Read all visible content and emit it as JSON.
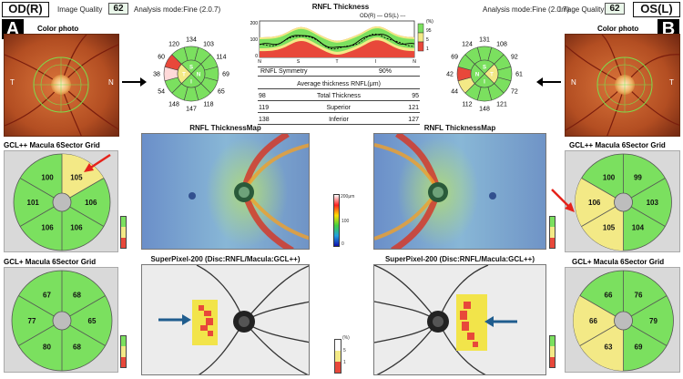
{
  "header": {
    "od_label": "OD(R)",
    "os_label": "OS(L)",
    "image_quality_label": "Image Quality",
    "image_quality_od": "62",
    "image_quality_os": "62",
    "analysis_mode_od": "Analysis mode:Fine (2.0.7)",
    "analysis_mode_os": "Analysis mode:Fine (2.0.7)"
  },
  "panel_letters": {
    "left": "A",
    "right": "B"
  },
  "color_photo": {
    "label": "Color photo",
    "t_label": "T",
    "n_label": "N"
  },
  "rnfl_clock_od": {
    "outer": [
      "134",
      "103",
      "114",
      "69",
      "65",
      "118",
      "147",
      "148",
      "54",
      "38",
      "60",
      "120"
    ],
    "quadrants": {
      "S": "S",
      "N": "N",
      "I": "I",
      "T": "T"
    },
    "colors": [
      "#7be05f",
      "#7be05f",
      "#7be05f",
      "#7be05f",
      "#7be05f",
      "#7be05f",
      "#7be05f",
      "#7be05f",
      "#7be05f",
      "#ffd9d9",
      "#e8483a",
      "#7be05f"
    ]
  },
  "rnfl_clock_os": {
    "outer": [
      "131",
      "124",
      "69",
      "42",
      "44",
      "112",
      "148",
      "121",
      "72",
      "61",
      "92",
      "108"
    ],
    "quadrants": {
      "S": "S",
      "N": "N",
      "I": "I",
      "T": "T"
    },
    "colors": [
      "#7be05f",
      "#7be05f",
      "#7be05f",
      "#e8483a",
      "#f3e986",
      "#7be05f",
      "#7be05f",
      "#7be05f",
      "#7be05f",
      "#7be05f",
      "#7be05f",
      "#7be05f"
    ]
  },
  "rnfl_thickness": {
    "title": "RNFL Thickness",
    "legend_od": "OD(R)",
    "legend_os": "OS(L)",
    "y_ticks": [
      "200",
      "100",
      "0"
    ],
    "x_ticks": [
      "N",
      "S",
      "T",
      "I",
      "N"
    ],
    "scale": [
      "(%)",
      "95",
      "5",
      "1"
    ],
    "symmetry_label": "RNFL Symmetry",
    "symmetry_value": "90%"
  },
  "avg_table": {
    "title": "Average thickness RNFL(μm)",
    "rows": [
      {
        "od": "98",
        "label": "Total Thickness",
        "os": "95"
      },
      {
        "od": "119",
        "label": "Superior",
        "os": "121"
      },
      {
        "od": "138",
        "label": "Inferior",
        "os": "127"
      }
    ]
  },
  "thickness_map": {
    "title_left": "RNFL ThicknessMap",
    "title_right": "RNFL ThicknessMap",
    "scale_top": "200μm",
    "scale_mid": "100",
    "scale_bottom": "0"
  },
  "gcl_pp_od": {
    "title": "GCL++ Macula 6Sector Grid",
    "values": [
      "100",
      "105",
      "101",
      "106",
      "106",
      "106"
    ]
  },
  "gcl_pp_os": {
    "title": "GCL++ Macula 6Sector Grid",
    "values": [
      "100",
      "99",
      "106",
      "105",
      "103",
      "104"
    ]
  },
  "gcl_p_od": {
    "title": "GCL+ Macula 6Sector Grid",
    "values": [
      "67",
      "68",
      "77",
      "80",
      "65",
      "68"
    ]
  },
  "gcl_p_os": {
    "title": "GCL+ Macula 6Sector Grid",
    "values": [
      "66",
      "76",
      "66",
      "63",
      "79",
      "69"
    ]
  },
  "superpixel": {
    "title_left": "SuperPixel-200 (Disc:RNFL/Macula:GCL++)",
    "title_right": "SuperPixel-200 (Disc:RNFL/Macula:GCL++)",
    "scale": [
      "(%)",
      "5",
      "1"
    ]
  },
  "small_legend": [
    "(%)",
    "5",
    "1"
  ],
  "colors": {
    "normal": "#7be05f",
    "borderline": "#f3e986",
    "abnormal": "#e8483a",
    "arrow_red": "#e5231b",
    "arrow_blue": "#1f5d8e"
  }
}
